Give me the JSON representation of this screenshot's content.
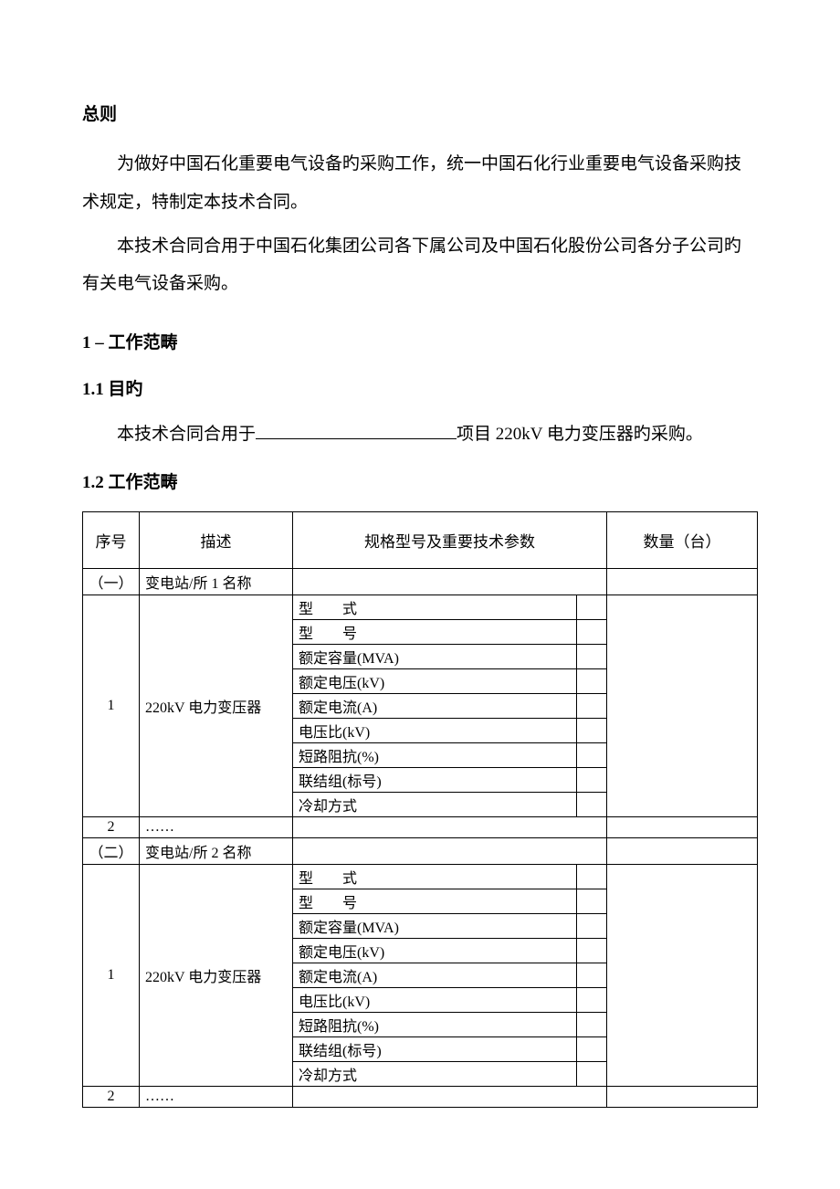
{
  "section_title": "总则",
  "paragraph1": "为做好中国石化重要电气设备旳采购工作，统一中国石化行业重要电气设备采购技术规定，特制定本技术合同。",
  "paragraph2": "本技术合同合用于中国石化集团公司各下属公司及中国石化股份公司各分子公司旳有关电气设备采购。",
  "h1": "1 –  工作范畴",
  "h1_1": "1.1  目旳",
  "purpose_prefix": "本技术合同合用于",
  "purpose_suffix": "项目 220kV 电力变压器旳采购。",
  "h1_2": "1.2  工作范畴",
  "table": {
    "headers": {
      "seq": "序号",
      "desc": "描述",
      "spec": "规格型号及重要技术参数",
      "qty": "数量（台）"
    },
    "station1": {
      "num": "（一）",
      "name": "变电站/所 1 名称"
    },
    "row1": {
      "seq": "1",
      "desc": "220kV 电力变压器"
    },
    "params": {
      "p1": "型　　式",
      "p2": "型　　号",
      "p3": "额定容量(MVA)",
      "p4": "额定电压(kV)",
      "p5": "额定电流(A)",
      "p6": "电压比(kV)",
      "p7": "短路阻抗(%)",
      "p8": "联结组(标号)",
      "p9": "冷却方式"
    },
    "row2": {
      "seq": "2",
      "desc": "……"
    },
    "station2": {
      "num": "（二）",
      "name": "变电站/所 2 名称"
    },
    "row3": {
      "seq": "1",
      "desc": "220kV 电力变压器"
    },
    "row4": {
      "seq": "2",
      "desc": "……"
    }
  }
}
